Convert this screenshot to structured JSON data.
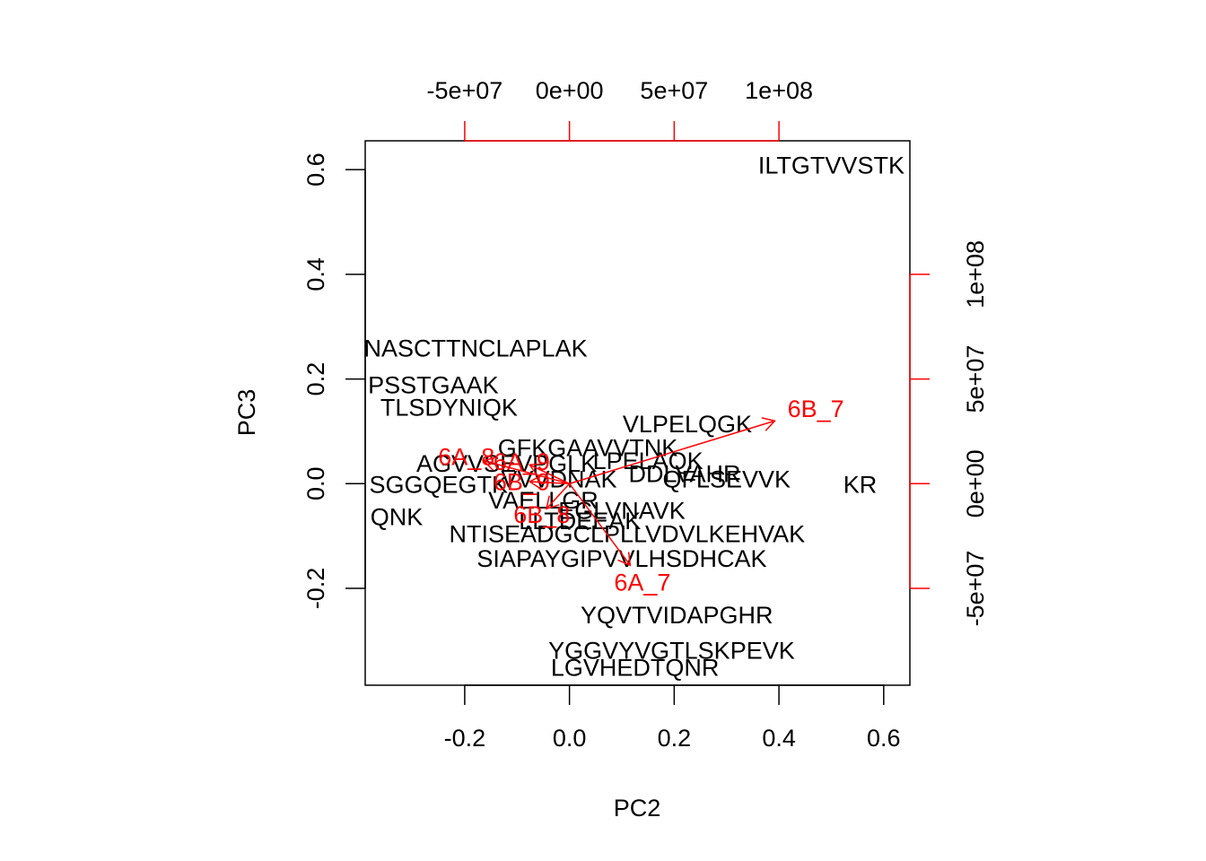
{
  "chart_data": {
    "type": "scatter",
    "subtype": "biplot",
    "xlabel": "PC2",
    "ylabel": "PC3",
    "xlim": [
      -0.39,
      0.65
    ],
    "ylim": [
      -0.385,
      0.655
    ],
    "x_ticks": [
      -0.2,
      0.0,
      0.2,
      0.4,
      0.6
    ],
    "x_tick_labels": [
      "-0.2",
      "0.0",
      "0.2",
      "0.4",
      "0.6"
    ],
    "y_ticks": [
      -0.2,
      0.0,
      0.2,
      0.4,
      0.6
    ],
    "y_tick_labels": [
      "-0.2",
      "0.0",
      "0.2",
      "0.4",
      "0.6"
    ],
    "top_axis": {
      "ticks": [
        -50000000,
        0,
        50000000,
        100000000
      ],
      "tick_labels": [
        "-5e+07",
        "0e+00",
        "5e+07",
        "1e+08"
      ],
      "color": "#ff0000"
    },
    "right_axis": {
      "ticks": [
        -50000000,
        0,
        50000000,
        100000000
      ],
      "tick_labels": [
        "-5e+07",
        "0e+00",
        "5e+07",
        "1e+08"
      ],
      "color": "#ff0000"
    },
    "loadings_scale": 4e-09,
    "labeled_points": [
      {
        "label": "ILTGTVVSTK",
        "x": 0.5,
        "y": 0.61
      },
      {
        "label": "VSNASCTTNCLAPLAK",
        "x": -0.21,
        "y": 0.26
      },
      {
        "label": "PSSTGAAK",
        "x": -0.26,
        "y": 0.19
      },
      {
        "label": "TLSDYNIQK",
        "x": -0.23,
        "y": 0.147
      },
      {
        "label": "VLPELQGK",
        "x": 0.225,
        "y": 0.115
      },
      {
        "label": "YQVTVIDAPGHR",
        "x": 0.205,
        "y": -0.25
      },
      {
        "label": "YGGVYVGTLSKPEVK",
        "x": 0.195,
        "y": -0.317
      },
      {
        "label": "LGVHEDTQNR",
        "x": 0.125,
        "y": -0.35
      },
      {
        "label": "SIAPAYGIPVVLHSDHCAK",
        "x": 0.1,
        "y": -0.142
      },
      {
        "label": "NTISEADGCLPLLVDVLKEHVAK",
        "x": 0.11,
        "y": -0.095
      },
      {
        "label": "QNK",
        "x": -0.33,
        "y": -0.062
      },
      {
        "label": "KR",
        "x": 0.555,
        "y": 0.0
      },
      {
        "label": "GFKGAAVVTNK",
        "x": 0.035,
        "y": 0.07
      },
      {
        "label": "AGVVSEVPGLK",
        "x": -0.12,
        "y": 0.04
      },
      {
        "label": "LLTDEEAK",
        "x": 0.02,
        "y": -0.07
      },
      {
        "label": "EGLVNAVK",
        "x": 0.1,
        "y": -0.05
      },
      {
        "label": "VAELLGR",
        "x": -0.05,
        "y": -0.03
      },
      {
        "label": "DDLVAHR",
        "x": 0.22,
        "y": 0.02
      },
      {
        "label": "QFLSEVVK",
        "x": 0.3,
        "y": 0.01
      },
      {
        "label": "SGGQEGTK",
        "x": -0.25,
        "y": 0.0
      },
      {
        "label": "LPELAQK",
        "x": 0.15,
        "y": 0.045
      },
      {
        "label": "VVVDNAK",
        "x": -0.02,
        "y": 0.01
      }
    ],
    "loadings": [
      {
        "name": "6B_7",
        "dx": 98000000,
        "dy": 30000000
      },
      {
        "name": "6A_7",
        "dx": 29000000,
        "dy": -39000000
      },
      {
        "name": "6A_8",
        "dx": -41000000,
        "dy": 11000000
      },
      {
        "name": "6A_9",
        "dx": -19000000,
        "dy": 9000000
      },
      {
        "name": "6B_9",
        "dx": -19000000,
        "dy": 1000000
      },
      {
        "name": "6B_8",
        "dx": -11000000,
        "dy": -12000000
      }
    ],
    "colors": {
      "points": "#000000",
      "loadings": "#ff0000",
      "axes": "#000000"
    }
  }
}
